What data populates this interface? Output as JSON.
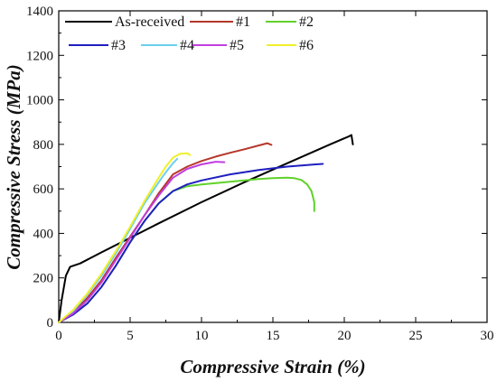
{
  "chart_data": {
    "type": "line",
    "xlabel": "Compressive Strain (%)",
    "ylabel": "Compressive Stress (MPa)",
    "xlim": [
      0,
      30
    ],
    "ylim": [
      0,
      1400
    ],
    "xticks": [
      "0",
      "5",
      "10",
      "15",
      "20",
      "25",
      "30"
    ],
    "yticks": [
      "0",
      "200",
      "400",
      "600",
      "800",
      "1000",
      "1200",
      "1400"
    ],
    "grid": false,
    "legend_position": "top-left",
    "series": [
      {
        "name": "As-received",
        "color": "#000000",
        "x": [
          0,
          0.2,
          0.5,
          0.8,
          1.5,
          3,
          5,
          7,
          10,
          13,
          16,
          19,
          20.3,
          20.5,
          20.6
        ],
        "y": [
          0,
          100,
          210,
          250,
          265,
          315,
          380,
          445,
          540,
          630,
          715,
          800,
          835,
          842,
          800
        ]
      },
      {
        "name": "#1",
        "color": "#b5372a",
        "x": [
          0,
          1,
          2,
          3,
          4,
          5,
          6,
          7,
          8,
          9,
          10,
          11,
          12,
          13,
          14,
          14.6,
          14.9
        ],
        "y": [
          0,
          45,
          110,
          190,
          290,
          385,
          480,
          580,
          665,
          700,
          725,
          745,
          762,
          778,
          795,
          805,
          798
        ]
      },
      {
        "name": "#2",
        "color": "#5fd22a",
        "x": [
          0,
          1,
          2,
          3,
          4,
          5,
          6,
          7,
          8,
          9,
          10,
          12,
          14,
          15,
          16,
          16.5,
          17,
          17.4,
          17.7,
          17.9,
          17.9
        ],
        "y": [
          0,
          35,
          85,
          160,
          255,
          360,
          455,
          535,
          590,
          612,
          620,
          632,
          644,
          648,
          650,
          648,
          640,
          620,
          590,
          540,
          500
        ]
      },
      {
        "name": "#3",
        "color": "#1f1fc0",
        "x": [
          0,
          1,
          2,
          3,
          4,
          5,
          6,
          7,
          8,
          9,
          10,
          12,
          14,
          16,
          18,
          18.5
        ],
        "y": [
          0,
          35,
          85,
          160,
          255,
          360,
          455,
          535,
          590,
          620,
          638,
          665,
          685,
          700,
          710,
          712
        ]
      },
      {
        "name": "#4",
        "color": "#6ad0ee",
        "x": [
          0,
          1,
          2,
          3,
          4,
          5,
          6,
          7,
          7.5,
          8,
          8.3
        ],
        "y": [
          0,
          50,
          125,
          210,
          310,
          420,
          535,
          630,
          675,
          715,
          735
        ]
      },
      {
        "name": "#5",
        "color": "#c03ee0",
        "x": [
          0,
          1,
          2,
          3,
          4,
          5,
          6,
          7,
          8,
          9,
          10,
          11,
          11.6
        ],
        "y": [
          0,
          40,
          100,
          180,
          280,
          380,
          480,
          570,
          650,
          690,
          710,
          722,
          720
        ]
      },
      {
        "name": "#6",
        "color": "#f0f02a",
        "x": [
          0,
          1,
          2,
          3,
          4,
          5,
          6,
          7,
          7.5,
          8,
          8.5,
          9,
          9.2
        ],
        "y": [
          0,
          55,
          130,
          220,
          320,
          430,
          545,
          650,
          700,
          740,
          758,
          760,
          752
        ]
      }
    ]
  }
}
